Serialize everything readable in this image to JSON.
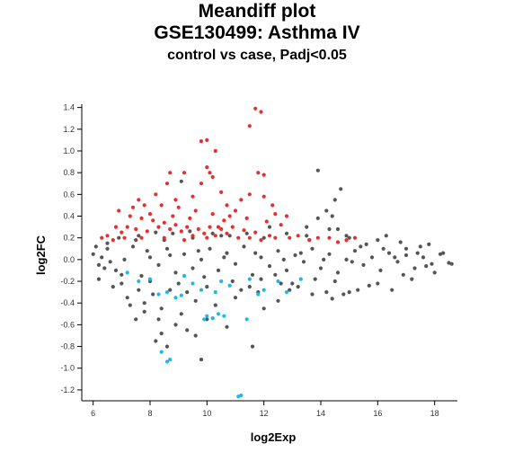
{
  "chart_data": {
    "type": "scatter",
    "title_lines": [
      "Meandiff plot",
      "GSE130499: Asthma IV"
    ],
    "subtitle": "control vs case, Padj<0.05",
    "xlabel": "log2Exp",
    "ylabel": "log2FC",
    "xlim": [
      5.6,
      18.8
    ],
    "ylim": [
      -1.3,
      1.43
    ],
    "x_ticks": [
      6,
      8,
      10,
      12,
      14,
      16,
      18
    ],
    "y_ticks": [
      -1.2,
      -1.0,
      -0.8,
      -0.6,
      -0.4,
      -0.2,
      0.0,
      0.2,
      0.4,
      0.6,
      0.8,
      1.0,
      1.2,
      1.4
    ],
    "grid": false,
    "legend": "none",
    "colors": {
      "not_significant": "#555555",
      "up": "#ee2c2c",
      "down": "#1fb8e8"
    },
    "series": [
      {
        "category": "not_significant",
        "points": [
          [
            6.0,
            0.05
          ],
          [
            6.2,
            -0.05
          ],
          [
            6.5,
            0.1
          ],
          [
            6.8,
            -0.1
          ],
          [
            7.1,
            0.0
          ],
          [
            7.4,
            0.12
          ],
          [
            7.7,
            -0.15
          ],
          [
            8.0,
            0.02
          ],
          [
            8.3,
            -0.05
          ],
          [
            8.6,
            0.1
          ],
          [
            8.9,
            -0.12
          ],
          [
            9.2,
            0.05
          ],
          [
            9.5,
            -0.08
          ],
          [
            9.8,
            0.0
          ],
          [
            10.1,
            0.1
          ],
          [
            10.4,
            -0.1
          ],
          [
            10.7,
            0.06
          ],
          [
            11.0,
            -0.04
          ],
          [
            11.3,
            0.12
          ],
          [
            11.6,
            -0.14
          ],
          [
            11.9,
            0.02
          ],
          [
            12.2,
            -0.06
          ],
          [
            12.5,
            0.08
          ],
          [
            12.8,
            -0.1
          ],
          [
            13.1,
            0.04
          ],
          [
            13.4,
            -0.02
          ],
          [
            13.7,
            0.1
          ],
          [
            14.0,
            -0.08
          ],
          [
            14.3,
            0.05
          ],
          [
            14.6,
            -0.12
          ],
          [
            14.9,
            0.0
          ],
          [
            15.2,
            0.08
          ],
          [
            15.5,
            -0.05
          ],
          [
            15.8,
            0.02
          ],
          [
            16.1,
            -0.1
          ],
          [
            16.4,
            0.06
          ],
          [
            16.7,
            -0.02
          ],
          [
            17.0,
            0.04
          ],
          [
            17.3,
            -0.08
          ],
          [
            17.6,
            0.02
          ],
          [
            17.9,
            -0.04
          ],
          [
            18.2,
            0.05
          ],
          [
            18.5,
            -0.03
          ],
          [
            16.0,
            0.18
          ],
          [
            16.8,
            0.16
          ],
          [
            17.2,
            -0.18
          ],
          [
            15.0,
            0.2
          ],
          [
            14.5,
            -0.2
          ],
          [
            13.5,
            0.22
          ],
          [
            13.0,
            -0.22
          ],
          [
            12.0,
            0.2
          ],
          [
            11.5,
            -0.25
          ],
          [
            10.5,
            0.22
          ],
          [
            10.0,
            -0.25
          ],
          [
            9.5,
            0.2
          ],
          [
            9.0,
            -0.22
          ],
          [
            8.5,
            0.18
          ],
          [
            8.0,
            -0.2
          ],
          [
            7.5,
            0.18
          ],
          [
            7.0,
            -0.22
          ],
          [
            6.5,
            0.15
          ],
          [
            6.2,
            -0.18
          ],
          [
            7.2,
            -0.35
          ],
          [
            7.8,
            -0.4
          ],
          [
            8.4,
            -0.45
          ],
          [
            9.1,
            -0.5
          ],
          [
            9.6,
            -0.38
          ],
          [
            10.3,
            -0.42
          ],
          [
            11.0,
            -0.35
          ],
          [
            11.8,
            -0.3
          ],
          [
            12.5,
            -0.38
          ],
          [
            13.2,
            -0.25
          ],
          [
            14.2,
            -0.3
          ],
          [
            14.8,
            -0.32
          ],
          [
            15.3,
            -0.28
          ],
          [
            16.0,
            -0.22
          ],
          [
            16.5,
            -0.28
          ],
          [
            8.9,
            -0.6
          ],
          [
            9.3,
            -0.65
          ],
          [
            10.0,
            -0.55
          ],
          [
            8.4,
            -0.68
          ],
          [
            7.5,
            -0.55
          ],
          [
            9.8,
            -0.92
          ],
          [
            8.6,
            -0.8
          ],
          [
            12.2,
            0.3
          ],
          [
            13.5,
            0.3
          ],
          [
            13.9,
            0.38
          ],
          [
            14.2,
            0.45
          ],
          [
            14.4,
            0.4
          ],
          [
            14.7,
            0.65
          ],
          [
            13.9,
            0.82
          ],
          [
            14.5,
            0.55
          ],
          [
            14.6,
            0.28
          ],
          [
            14.3,
            0.28
          ],
          [
            9.1,
            0.72
          ],
          [
            11.6,
            -0.8
          ],
          [
            7.3,
            -0.42
          ],
          [
            11.2,
            -0.28
          ],
          [
            12.6,
            -0.22
          ],
          [
            13.8,
            -0.18
          ],
          [
            15.7,
            -0.24
          ],
          [
            16.3,
            0.22
          ],
          [
            17.5,
            0.12
          ],
          [
            18.0,
            -0.12
          ],
          [
            18.3,
            0.06
          ],
          [
            18.6,
            -0.04
          ],
          [
            17.8,
            0.14
          ],
          [
            16.9,
            -0.14
          ],
          [
            15.6,
            0.14
          ],
          [
            6.7,
            -0.25
          ],
          [
            6.9,
            0.2
          ],
          [
            7.6,
            0.22
          ],
          [
            8.2,
            0.25
          ],
          [
            8.8,
            0.24
          ],
          [
            9.4,
            0.26
          ],
          [
            10.2,
            0.24
          ],
          [
            10.8,
            0.22
          ],
          [
            11.4,
            0.24
          ],
          [
            12.8,
            0.24
          ],
          [
            13.6,
            0.18
          ],
          [
            14.9,
            0.22
          ],
          [
            15.4,
            0.12
          ],
          [
            16.2,
            0.1
          ],
          [
            17.0,
            0.1
          ],
          [
            17.4,
            0.06
          ],
          [
            12.4,
            -0.14
          ],
          [
            11.9,
            -0.18
          ],
          [
            10.9,
            -0.2
          ],
          [
            9.9,
            -0.16
          ],
          [
            9.3,
            -0.3
          ],
          [
            8.7,
            -0.28
          ],
          [
            8.1,
            -0.32
          ],
          [
            7.6,
            -0.28
          ],
          [
            7.0,
            -0.14
          ],
          [
            6.4,
            -0.08
          ],
          [
            6.1,
            0.12
          ],
          [
            6.3,
            0.02
          ],
          [
            6.6,
            -0.02
          ],
          [
            7.9,
            0.08
          ],
          [
            8.7,
            0.04
          ],
          [
            9.7,
            0.08
          ],
          [
            10.6,
            0.02
          ],
          [
            11.7,
            0.06
          ],
          [
            12.7,
            0.0
          ],
          [
            13.3,
            0.06
          ],
          [
            14.1,
            0.0
          ],
          [
            15.1,
            -0.02
          ],
          [
            16.6,
            0.02
          ],
          [
            17.7,
            -0.06
          ],
          [
            12.9,
            -0.28
          ],
          [
            13.7,
            -0.32
          ],
          [
            14.4,
            -0.36
          ],
          [
            15.0,
            -0.3
          ],
          [
            10.7,
            -0.62
          ],
          [
            12.0,
            -0.45
          ],
          [
            7.8,
            -0.48
          ],
          [
            8.3,
            -0.55
          ],
          [
            9.6,
            -0.7
          ],
          [
            8.2,
            -0.75
          ]
        ]
      },
      {
        "category": "up",
        "points": [
          [
            11.7,
            1.39
          ],
          [
            11.9,
            1.36
          ],
          [
            11.5,
            1.23
          ],
          [
            10.0,
            1.1
          ],
          [
            9.8,
            1.09
          ],
          [
            10.3,
            1.0
          ],
          [
            10.0,
            0.85
          ],
          [
            10.1,
            0.8
          ],
          [
            10.2,
            0.76
          ],
          [
            8.7,
            0.8
          ],
          [
            9.2,
            0.8
          ],
          [
            11.8,
            0.8
          ],
          [
            12.0,
            0.78
          ],
          [
            9.8,
            0.7
          ],
          [
            10.5,
            0.62
          ],
          [
            11.5,
            0.6
          ],
          [
            12.0,
            0.58
          ],
          [
            12.3,
            0.5
          ],
          [
            8.2,
            0.6
          ],
          [
            8.6,
            0.7
          ],
          [
            7.6,
            0.55
          ],
          [
            7.8,
            0.5
          ],
          [
            8.4,
            0.5
          ],
          [
            9.0,
            0.48
          ],
          [
            9.6,
            0.45
          ],
          [
            10.2,
            0.42
          ],
          [
            10.8,
            0.4
          ],
          [
            11.4,
            0.38
          ],
          [
            12.1,
            0.35
          ],
          [
            12.6,
            0.32
          ],
          [
            6.9,
            0.45
          ],
          [
            7.3,
            0.4
          ],
          [
            7.7,
            0.38
          ],
          [
            8.1,
            0.36
          ],
          [
            8.5,
            0.34
          ],
          [
            8.9,
            0.32
          ],
          [
            9.3,
            0.3
          ],
          [
            9.7,
            0.28
          ],
          [
            10.1,
            0.3
          ],
          [
            10.5,
            0.28
          ],
          [
            10.9,
            0.3
          ],
          [
            11.3,
            0.27
          ],
          [
            11.7,
            0.25
          ],
          [
            12.2,
            0.22
          ],
          [
            12.9,
            0.2
          ],
          [
            13.6,
            0.18
          ],
          [
            14.3,
            0.2
          ],
          [
            14.9,
            0.18
          ],
          [
            15.2,
            0.2
          ],
          [
            6.5,
            0.22
          ],
          [
            6.7,
            0.18
          ],
          [
            7.0,
            0.25
          ],
          [
            7.2,
            0.3
          ],
          [
            7.5,
            0.28
          ],
          [
            7.9,
            0.26
          ],
          [
            8.3,
            0.3
          ],
          [
            8.7,
            0.28
          ],
          [
            9.1,
            0.26
          ],
          [
            9.5,
            0.22
          ],
          [
            9.9,
            0.24
          ],
          [
            10.3,
            0.22
          ],
          [
            10.7,
            0.24
          ],
          [
            11.1,
            0.2
          ],
          [
            11.5,
            0.2
          ],
          [
            11.9,
            0.18
          ],
          [
            12.4,
            0.2
          ],
          [
            13.2,
            0.22
          ],
          [
            13.9,
            0.2
          ],
          [
            14.6,
            0.16
          ],
          [
            7.4,
            0.48
          ],
          [
            8.0,
            0.42
          ],
          [
            8.8,
            0.4
          ],
          [
            9.4,
            0.38
          ],
          [
            10.6,
            0.36
          ],
          [
            11.0,
            0.45
          ],
          [
            12.8,
            0.4
          ],
          [
            7.1,
            0.2
          ],
          [
            7.7,
            0.2
          ],
          [
            8.5,
            0.2
          ],
          [
            9.2,
            0.18
          ],
          [
            10.0,
            0.2
          ],
          [
            10.4,
            0.3
          ],
          [
            6.8,
            0.3
          ],
          [
            6.3,
            0.2
          ],
          [
            8.9,
            0.55
          ],
          [
            9.5,
            0.58
          ],
          [
            10.7,
            0.5
          ],
          [
            11.2,
            0.55
          ],
          [
            12.4,
            0.42
          ]
        ]
      },
      {
        "category": "down",
        "points": [
          [
            11.2,
            -1.25
          ],
          [
            11.1,
            -1.26
          ],
          [
            8.7,
            -0.92
          ],
          [
            8.6,
            -0.94
          ],
          [
            8.4,
            -0.85
          ],
          [
            10.0,
            -0.52
          ],
          [
            10.2,
            -0.54
          ],
          [
            10.4,
            -0.5
          ],
          [
            9.9,
            -0.55
          ],
          [
            10.6,
            -0.52
          ],
          [
            11.4,
            -0.55
          ],
          [
            8.3,
            -0.32
          ],
          [
            8.6,
            -0.3
          ],
          [
            9.1,
            -0.33
          ],
          [
            9.8,
            -0.28
          ],
          [
            10.3,
            -0.3
          ],
          [
            11.8,
            -0.32
          ],
          [
            12.0,
            -0.28
          ],
          [
            7.6,
            -0.2
          ],
          [
            8.0,
            -0.18
          ],
          [
            9.5,
            -0.22
          ],
          [
            10.5,
            -0.2
          ],
          [
            11.5,
            -0.18
          ],
          [
            12.5,
            -0.2
          ],
          [
            7.2,
            -0.12
          ],
          [
            9.2,
            -0.15
          ],
          [
            10.8,
            -0.24
          ],
          [
            12.8,
            -0.3
          ],
          [
            13.3,
            -0.18
          ],
          [
            8.9,
            -0.35
          ]
        ]
      }
    ]
  }
}
